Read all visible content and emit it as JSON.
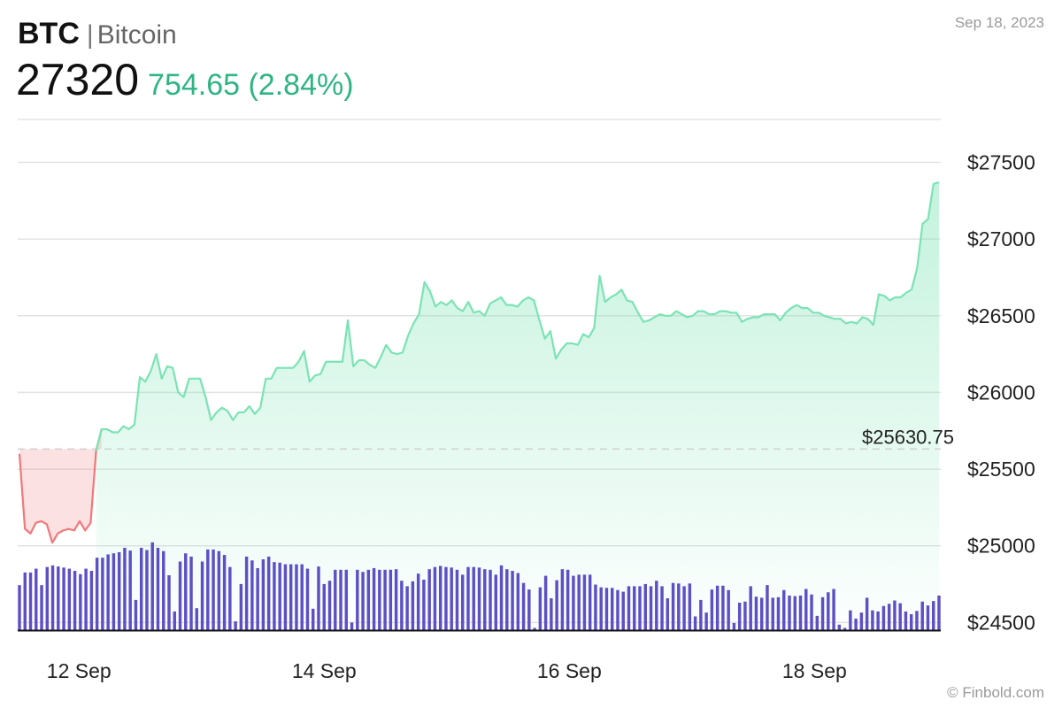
{
  "header": {
    "symbol": "BTC",
    "separator": "|",
    "name": "Bitcoin",
    "price": "27320",
    "change": "754.65 (2.84%)",
    "date": "Sep 18, 2023"
  },
  "footer": {
    "source": "© Finbold.com"
  },
  "colors": {
    "up": "#2fb483",
    "up_line": "#7be3b4",
    "down_line": "#f0787a",
    "volume": "#5d50c6",
    "grid": "#e3e3e3",
    "reference": "#d0d0d0"
  },
  "chart_data": {
    "type": "line",
    "title": "",
    "xlabel": "",
    "ylabel": "",
    "ylim": [
      24450,
      27780
    ],
    "y_ticks": [
      24500,
      25000,
      25500,
      26000,
      26500,
      27000,
      27500
    ],
    "y_tick_labels": [
      "$24500",
      "$25000",
      "$25500",
      "$26000",
      "$26500",
      "$27000",
      "$27500"
    ],
    "x_range": [
      11.5,
      19.03
    ],
    "x_ticks": [
      {
        "value": 12,
        "label": "12 Sep"
      },
      {
        "value": 14,
        "label": "14 Sep"
      },
      {
        "value": 16,
        "label": "16 Sep"
      },
      {
        "value": 18,
        "label": "18 Sep"
      }
    ],
    "reference": {
      "value": 25630.75,
      "label": "$25630.75"
    },
    "grid": true,
    "series": [
      {
        "values": [
          25600,
          25110,
          25080,
          25150,
          25160,
          25140,
          25020,
          25080,
          25100,
          25110,
          25100,
          25160,
          25100,
          25150,
          25620,
          25760,
          25760,
          25740,
          25740,
          25780,
          25760,
          25790,
          26100,
          26070,
          26140,
          26250,
          26090,
          26170,
          26160,
          26000,
          25970,
          26090,
          26090,
          26090,
          25970,
          25820,
          25870,
          25900,
          25880,
          25820,
          25870,
          25870,
          25910,
          25860,
          25900,
          26090,
          26090,
          26160,
          26160,
          26160,
          26160,
          26200,
          26270,
          26070,
          26110,
          26120,
          26200,
          26200,
          26200,
          26200,
          26470,
          26170,
          26210,
          26210,
          26180,
          26160,
          26230,
          26310,
          26260,
          26250,
          26260,
          26370,
          26450,
          26510,
          26720,
          26660,
          26560,
          26590,
          26570,
          26600,
          26550,
          26530,
          26590,
          26520,
          26530,
          26500,
          26580,
          26600,
          26620,
          26570,
          26570,
          26560,
          26600,
          26620,
          26600,
          26470,
          26350,
          26400,
          26220,
          26280,
          26320,
          26320,
          26310,
          26380,
          26360,
          26420,
          26760,
          26590,
          26620,
          26640,
          26670,
          26600,
          26590,
          26520,
          26460,
          26470,
          26490,
          26510,
          26500,
          26500,
          26530,
          26510,
          26490,
          26500,
          26530,
          26530,
          26510,
          26510,
          26530,
          26530,
          26520,
          26520,
          26460,
          26480,
          26490,
          26490,
          26510,
          26510,
          26510,
          26470,
          26520,
          26550,
          26570,
          26550,
          26550,
          26520,
          26520,
          26500,
          26490,
          26480,
          26480,
          26450,
          26460,
          26450,
          26490,
          26480,
          26440,
          26640,
          26630,
          26600,
          26620,
          26620,
          26650,
          26670,
          26810,
          27100,
          27130,
          27360,
          27370
        ]
      },
      {
        "name_hidden": true,
        "values": [
          82,
          105,
          105,
          112,
          82,
          115,
          118,
          116,
          114,
          112,
          108,
          102,
          112,
          108,
          132,
          132,
          138,
          140,
          142,
          150,
          145,
          55,
          150,
          146,
          160,
          150,
          144,
          100,
          34,
          125,
          140,
          134,
          40,
          125,
          147,
          147,
          144,
          137,
          115,
          16,
          84,
          134,
          127,
          113,
          129,
          134,
          124,
          123,
          120,
          120,
          120,
          120,
          112,
          39,
          116,
          84,
          90,
          110,
          110,
          110,
          14,
          110,
          106,
          110,
          113,
          110,
          110,
          110,
          111,
          90,
          80,
          89,
          103,
          92,
          111,
          115,
          117,
          115,
          114,
          110,
          101,
          115,
          115,
          114,
          111,
          110,
          101,
          118,
          111,
          108,
          104,
          86,
          74,
          4,
          78,
          99,
          58,
          91,
          111,
          110,
          99,
          101,
          101,
          101,
          83,
          78,
          77,
          77,
          73,
          70,
          80,
          80,
          80,
          84,
          80,
          90,
          80,
          58,
          86,
          85,
          80,
          85,
          25,
          55,
          32,
          74,
          81,
          81,
          73,
          13,
          50,
          52,
          80,
          61,
          59,
          82,
          59,
          60,
          73,
          63,
          62,
          63,
          75,
          65,
          26,
          60,
          69,
          75,
          10,
          4,
          36,
          21,
          32,
          59,
          36,
          34,
          44,
          48,
          54,
          49,
          34,
          29,
          35,
          52,
          45,
          53,
          63
        ]
      }
    ]
  }
}
